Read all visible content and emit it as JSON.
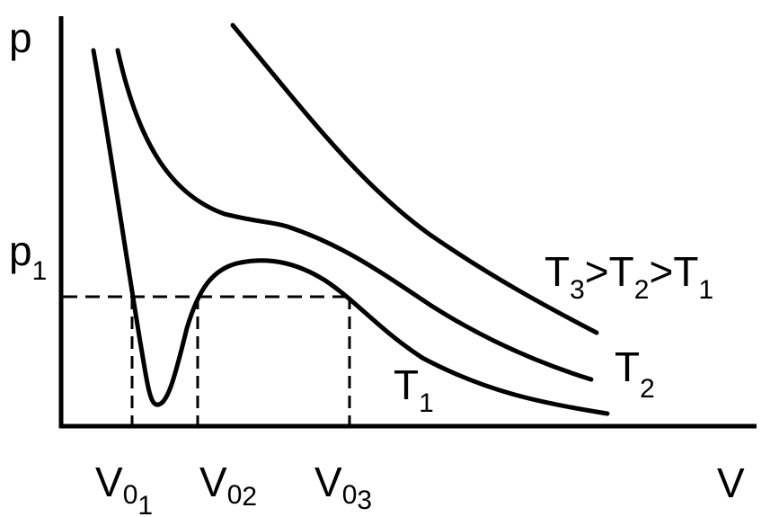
{
  "axes": {
    "y_label": "p",
    "x_label": "V",
    "p_level_base": "p",
    "p_level_sub": "1"
  },
  "volumes": [
    {
      "base": "V",
      "sub0": "0",
      "sub1": "1"
    },
    {
      "base": "V",
      "sub0": "0",
      "sub1": "2"
    },
    {
      "base": "V",
      "sub0": "0",
      "sub1": "3"
    }
  ],
  "curves": {
    "t1": {
      "base": "T",
      "sub": "1"
    },
    "t2": {
      "base": "T",
      "sub": "2"
    }
  },
  "relation": {
    "t3_base": "T",
    "t3_sub": "3",
    "gt1": ">",
    "t2_base": "T",
    "t2_sub": "2",
    "gt2": ">",
    "t1_base": "T",
    "t1_sub": "1"
  },
  "colors": {
    "ink": "#000000",
    "background": "#ffffff"
  }
}
